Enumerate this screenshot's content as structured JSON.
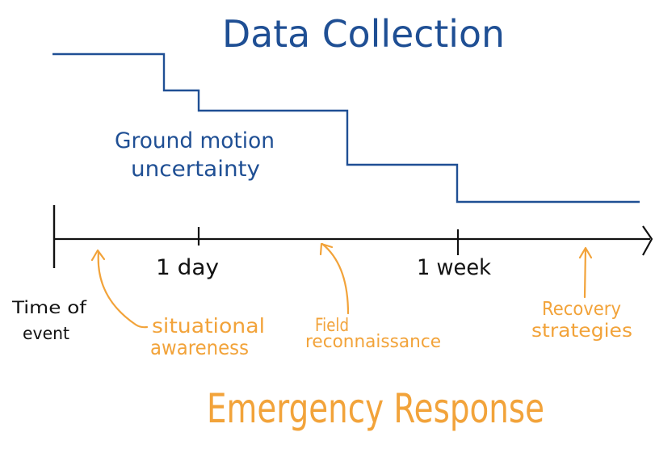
{
  "top_title": "Data Collection",
  "bottom_title": "Emergency Response",
  "uncertainty_label": {
    "line1": "Ground motion",
    "line2": "uncertainty"
  },
  "timeline": {
    "origin_label": {
      "line1": "Time of",
      "line2": "event"
    },
    "ticks": [
      {
        "label": "1 day"
      },
      {
        "label": "1 week"
      }
    ]
  },
  "phases": [
    {
      "line1": "situational",
      "line2": "awareness"
    },
    {
      "line1": "Field",
      "line2": "reconnaissance"
    },
    {
      "line1": "Recovery",
      "line2": "strategies"
    }
  ],
  "colors": {
    "blue": "#1f4f94",
    "orange": "#f2a33a",
    "black": "#111111"
  }
}
